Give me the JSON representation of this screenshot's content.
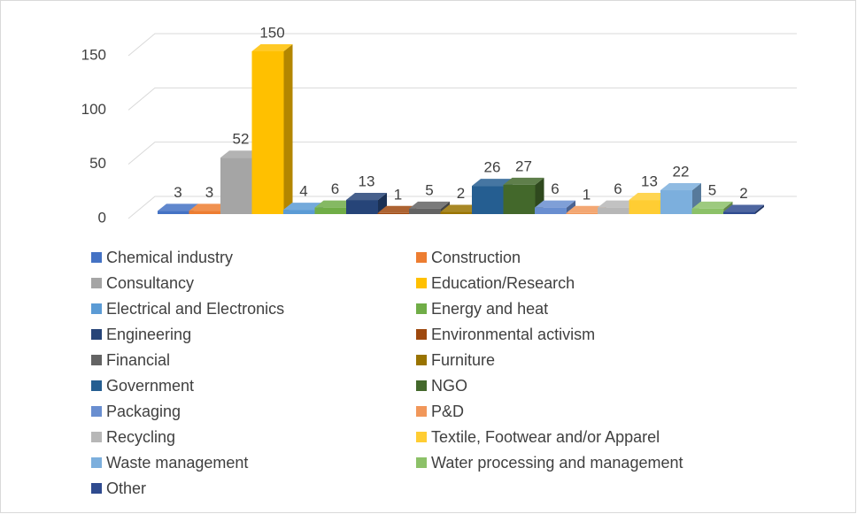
{
  "chart_data": {
    "type": "bar3d",
    "categories": [
      "Chemical industry",
      "Construction",
      "Consultancy",
      "Education/Research",
      "Electrical and Electronics",
      "Energy and heat",
      "Engineering",
      "Environmental activism",
      "Financial",
      "Furniture",
      "Government",
      "NGO",
      "Packaging",
      "P&D",
      "Recycling",
      "Textile, Footwear and/or Apparel",
      "Waste management",
      "Water processing and management",
      "Other"
    ],
    "values": [
      3,
      3,
      52,
      150,
      4,
      6,
      13,
      1,
      5,
      2,
      26,
      27,
      6,
      1,
      6,
      13,
      22,
      5,
      2
    ],
    "colors": [
      "#4472c4",
      "#ed7d31",
      "#a5a5a5",
      "#ffc000",
      "#5b9bd5",
      "#70ad47",
      "#264478",
      "#9e480e",
      "#636363",
      "#997300",
      "#255e91",
      "#43682b",
      "#698ed0",
      "#f1975a",
      "#b7b7b7",
      "#ffcd33",
      "#7cafdd",
      "#8cc168",
      "#2f4b8f"
    ],
    "ylim": [
      0,
      150
    ],
    "yticks": [
      0,
      50,
      100,
      150
    ],
    "grid": true,
    "legend": "bottom"
  }
}
